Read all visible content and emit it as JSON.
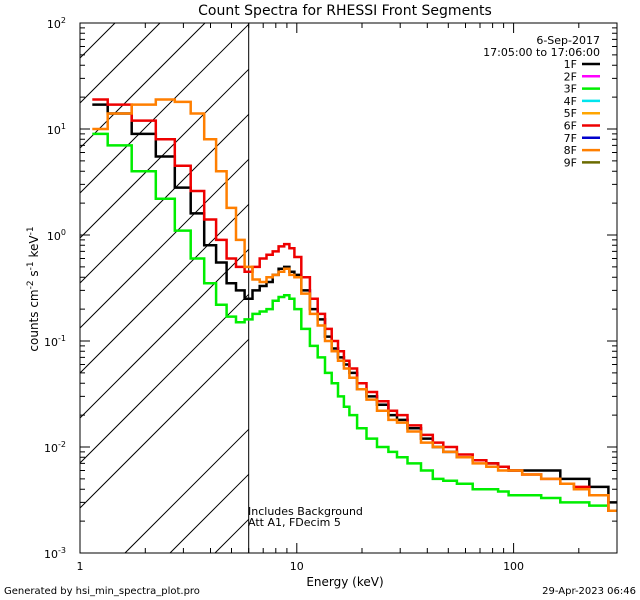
{
  "chart_data": {
    "type": "line",
    "title": "Count Spectra for RHESSI Front Segments",
    "xlabel": "Energy (keV)",
    "ylabel_parts": [
      "counts cm",
      "-2",
      " s",
      "-1",
      " keV",
      "-1"
    ],
    "x_scale": "log",
    "y_scale": "log",
    "xlim": [
      1,
      300
    ],
    "ylim": [
      0.001,
      100
    ],
    "x_ticks": [
      {
        "value": 1,
        "label": "1"
      },
      {
        "value": 10,
        "label": "10"
      },
      {
        "value": 100,
        "label": "100"
      }
    ],
    "y_ticks": [
      {
        "value": 0.001,
        "base": "10",
        "exp": "-3"
      },
      {
        "value": 0.01,
        "base": "10",
        "exp": "-2"
      },
      {
        "value": 0.1,
        "base": "10",
        "exp": "-1"
      },
      {
        "value": 1,
        "base": "10",
        "exp": "0"
      },
      {
        "value": 10,
        "base": "10",
        "exp": "1"
      },
      {
        "value": 100,
        "base": "10",
        "exp": "2"
      }
    ],
    "date": "6-Sep-2017",
    "time_range": "17:05:00 to 17:06:00",
    "excluded_region_max_keV": 6,
    "annotations": [
      "Includes Background",
      "Att A1, FDecim  5"
    ],
    "legend": [
      {
        "name": "1F",
        "color": "#000000"
      },
      {
        "name": "2F",
        "color": "#ff00ff"
      },
      {
        "name": "3F",
        "color": "#00ee00"
      },
      {
        "name": "4F",
        "color": "#00e5ee"
      },
      {
        "name": "5F",
        "color": "#ffa500"
      },
      {
        "name": "6F",
        "color": "#ee0000"
      },
      {
        "name": "7F",
        "color": "#0000cc"
      },
      {
        "name": "8F",
        "color": "#ff7f00"
      },
      {
        "name": "9F",
        "color": "#6b6b00"
      }
    ],
    "series": [
      {
        "name": "1F",
        "color": "#000000",
        "x": [
          1.2,
          1.5,
          2,
          2.5,
          3,
          3.5,
          4,
          4.5,
          5,
          5.5,
          6,
          6.5,
          7,
          7.5,
          8,
          8.5,
          9,
          9.5,
          10,
          11,
          12,
          13,
          14,
          15,
          16,
          17,
          18,
          20,
          22,
          25,
          28,
          30,
          35,
          40,
          45,
          50,
          60,
          70,
          80,
          90,
          100,
          120,
          150,
          180,
          200,
          250,
          300
        ],
        "y": [
          17,
          14,
          9,
          5.5,
          2.8,
          1.6,
          0.8,
          0.55,
          0.35,
          0.3,
          0.25,
          0.3,
          0.33,
          0.36,
          0.42,
          0.48,
          0.5,
          0.45,
          0.42,
          0.3,
          0.2,
          0.16,
          0.11,
          0.085,
          0.07,
          0.06,
          0.05,
          0.035,
          0.03,
          0.025,
          0.02,
          0.018,
          0.015,
          0.012,
          0.01,
          0.009,
          0.008,
          0.0075,
          0.007,
          0.0065,
          0.006,
          0.006,
          0.006,
          0.005,
          0.005,
          0.0042,
          0.003
        ]
      },
      {
        "name": "3F",
        "color": "#00ee00",
        "x": [
          1.2,
          1.5,
          2,
          2.5,
          3,
          3.5,
          4,
          4.5,
          5,
          5.5,
          6,
          6.5,
          7,
          7.5,
          8,
          8.5,
          9,
          9.5,
          10,
          11,
          12,
          13,
          14,
          15,
          16,
          17,
          18,
          20,
          22,
          25,
          28,
          30,
          35,
          40,
          45,
          50,
          60,
          70,
          80,
          90,
          100,
          120,
          150,
          180,
          200,
          250,
          300
        ],
        "y": [
          9,
          7,
          4,
          2.2,
          1.1,
          0.6,
          0.35,
          0.22,
          0.17,
          0.15,
          0.16,
          0.18,
          0.19,
          0.2,
          0.24,
          0.26,
          0.27,
          0.25,
          0.2,
          0.13,
          0.09,
          0.07,
          0.05,
          0.04,
          0.03,
          0.024,
          0.02,
          0.015,
          0.012,
          0.01,
          0.009,
          0.008,
          0.007,
          0.006,
          0.005,
          0.0048,
          0.0045,
          0.004,
          0.004,
          0.0038,
          0.0035,
          0.0035,
          0.0033,
          0.003,
          0.003,
          0.0028,
          0.0025
        ]
      },
      {
        "name": "6F",
        "color": "#ee0000",
        "x": [
          1.2,
          1.5,
          2,
          2.5,
          3,
          3.5,
          4,
          4.5,
          5,
          5.5,
          6,
          6.5,
          7,
          7.5,
          8,
          8.5,
          9,
          9.5,
          10,
          11,
          12,
          13,
          14,
          15,
          16,
          17,
          18,
          20,
          22,
          25,
          28,
          30,
          35,
          40,
          45,
          50,
          60,
          70,
          80,
          90,
          100,
          120,
          150,
          180,
          200,
          250,
          300
        ],
        "y": [
          19,
          17,
          12,
          8,
          4.5,
          2.6,
          1.4,
          0.9,
          0.6,
          0.5,
          0.45,
          0.5,
          0.6,
          0.65,
          0.7,
          0.78,
          0.82,
          0.75,
          0.62,
          0.4,
          0.25,
          0.18,
          0.13,
          0.1,
          0.08,
          0.065,
          0.055,
          0.04,
          0.033,
          0.027,
          0.022,
          0.02,
          0.016,
          0.013,
          0.011,
          0.01,
          0.0085,
          0.0075,
          0.007,
          0.0065,
          0.006,
          0.0055,
          0.005,
          0.0045,
          0.0042,
          0.0035,
          0.0025
        ]
      },
      {
        "name": "8F",
        "color": "#ff7f00",
        "x": [
          1.2,
          1.5,
          2,
          2.5,
          3,
          3.5,
          4,
          4.5,
          5,
          5.5,
          6,
          6.5,
          7,
          7.5,
          8,
          8.5,
          9,
          9.5,
          10,
          11,
          12,
          13,
          14,
          15,
          16,
          17,
          18,
          20,
          22,
          25,
          28,
          30,
          35,
          40,
          45,
          50,
          60,
          70,
          80,
          90,
          100,
          120,
          150,
          180,
          200,
          250,
          300
        ],
        "y": [
          10,
          14,
          17,
          19,
          18,
          14,
          8,
          4,
          1.8,
          0.9,
          0.5,
          0.38,
          0.36,
          0.4,
          0.42,
          0.45,
          0.48,
          0.42,
          0.4,
          0.28,
          0.18,
          0.14,
          0.1,
          0.08,
          0.065,
          0.055,
          0.045,
          0.035,
          0.028,
          0.022,
          0.018,
          0.017,
          0.014,
          0.011,
          0.01,
          0.009,
          0.008,
          0.007,
          0.0065,
          0.006,
          0.006,
          0.0055,
          0.005,
          0.0045,
          0.004,
          0.0035,
          0.0025
        ]
      }
    ]
  },
  "footer": {
    "generated_by": "Generated by hsi_min_spectra_plot.pro",
    "timestamp": "29-Apr-2023 06:46"
  }
}
